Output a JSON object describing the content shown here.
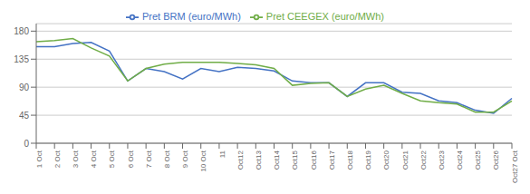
{
  "chart_data": {
    "type": "line",
    "categories": [
      "1 Oct",
      "2 Oct",
      "3 Oct",
      "4 Oct",
      "5 Oct",
      "6 Oct",
      "7 Oct",
      "8 Oct",
      "9 Oct",
      "10 Oct",
      "11",
      "Oct12",
      "Oct13",
      "Oct14",
      "Oct15",
      "Oct16",
      "Oct17",
      "Oct18",
      "Oct19",
      "Oct20",
      "Oct21",
      "Oct22",
      "Oct23",
      "Oct24",
      "Oct25",
      "Oct26",
      "Oct27 Oct"
    ],
    "series": [
      {
        "name": "Pret BRM (euro/MWh)",
        "color": "#4472c4",
        "values": [
          155,
          155,
          160,
          162,
          148,
          100,
          120,
          115,
          103,
          120,
          115,
          122,
          120,
          116,
          100,
          97,
          97,
          75,
          97,
          97,
          82,
          80,
          68,
          65,
          53,
          48,
          72
        ]
      },
      {
        "name": "Pret CEEGEX (euro/MWh)",
        "color": "#70ad47",
        "values": [
          163,
          165,
          168,
          153,
          140,
          100,
          120,
          127,
          130,
          130,
          130,
          128,
          126,
          120,
          93,
          96,
          97,
          75,
          87,
          93,
          80,
          68,
          65,
          63,
          50,
          50,
          68
        ]
      }
    ],
    "ylim": [
      0,
      192
    ],
    "yticks": [
      0,
      45,
      90,
      135,
      180
    ],
    "grid": true,
    "legend": "top"
  }
}
